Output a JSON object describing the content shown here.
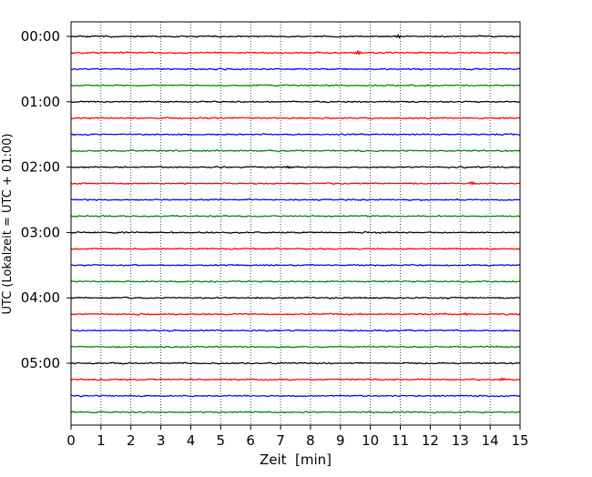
{
  "chart_data": {
    "type": "line",
    "chart_kind": "seismogram helicorder (dayplot)",
    "title": "",
    "xlabel": "Zeit  [min]",
    "ylabel": "UTC (Lokalzeit = UTC + 01:00)",
    "xlim": [
      0,
      15
    ],
    "x_ticks": [
      "0",
      "1",
      "2",
      "3",
      "4",
      "5",
      "6",
      "7",
      "8",
      "9",
      "10",
      "11",
      "12",
      "13",
      "14",
      "15"
    ],
    "y_tick_labels": [
      "00:00",
      "01:00",
      "02:00",
      "03:00",
      "04:00",
      "05:00"
    ],
    "rows_per_hour": 4,
    "row_minutes": 15,
    "row_count": 24,
    "row_colors": [
      "#000000",
      "#ff0000",
      "#0000ff",
      "#008000"
    ],
    "grid": {
      "vertical": true,
      "horizontal": false,
      "style": "dotted"
    },
    "legend": "none",
    "series": [
      {
        "start": "00:00",
        "color": "#000000",
        "noise_level": 1.0,
        "spikes": [
          {
            "x": 10.95,
            "amp": 1.8
          }
        ]
      },
      {
        "start": "00:15",
        "color": "#ff0000",
        "noise_level": 1.0,
        "spikes": [
          {
            "x": 9.6,
            "amp": 2.6
          }
        ]
      },
      {
        "start": "00:30",
        "color": "#0000ff",
        "noise_level": 1.0,
        "spikes": []
      },
      {
        "start": "00:45",
        "color": "#008000",
        "noise_level": 1.0,
        "spikes": []
      },
      {
        "start": "01:00",
        "color": "#000000",
        "noise_level": 1.0,
        "spikes": []
      },
      {
        "start": "01:15",
        "color": "#ff0000",
        "noise_level": 1.0,
        "spikes": []
      },
      {
        "start": "01:30",
        "color": "#0000ff",
        "noise_level": 1.0,
        "spikes": []
      },
      {
        "start": "01:45",
        "color": "#008000",
        "noise_level": 1.0,
        "spikes": []
      },
      {
        "start": "02:00",
        "color": "#000000",
        "noise_level": 1.0,
        "spikes": [
          {
            "x": 7.25,
            "amp": 1.6
          }
        ]
      },
      {
        "start": "02:15",
        "color": "#ff0000",
        "noise_level": 1.0,
        "spikes": [
          {
            "x": 13.4,
            "amp": 1.8
          }
        ]
      },
      {
        "start": "02:30",
        "color": "#0000ff",
        "noise_level": 1.0,
        "spikes": []
      },
      {
        "start": "02:45",
        "color": "#008000",
        "noise_level": 1.0,
        "spikes": []
      },
      {
        "start": "03:00",
        "color": "#000000",
        "noise_level": 1.0,
        "spikes": []
      },
      {
        "start": "03:15",
        "color": "#ff0000",
        "noise_level": 1.0,
        "spikes": []
      },
      {
        "start": "03:30",
        "color": "#0000ff",
        "noise_level": 1.0,
        "spikes": []
      },
      {
        "start": "03:45",
        "color": "#008000",
        "noise_level": 1.0,
        "spikes": []
      },
      {
        "start": "04:00",
        "color": "#000000",
        "noise_level": 1.0,
        "spikes": []
      },
      {
        "start": "04:15",
        "color": "#ff0000",
        "noise_level": 1.0,
        "spikes": [
          {
            "x": 13.2,
            "amp": 1.6
          }
        ]
      },
      {
        "start": "04:30",
        "color": "#0000ff",
        "noise_level": 1.0,
        "spikes": []
      },
      {
        "start": "04:45",
        "color": "#008000",
        "noise_level": 1.0,
        "spikes": []
      },
      {
        "start": "05:00",
        "color": "#000000",
        "noise_level": 1.0,
        "spikes": []
      },
      {
        "start": "05:15",
        "color": "#ff0000",
        "noise_level": 1.0,
        "spikes": [
          {
            "x": 14.4,
            "amp": 1.6
          }
        ]
      },
      {
        "start": "05:30",
        "color": "#0000ff",
        "noise_level": 1.0,
        "spikes": []
      },
      {
        "start": "05:45",
        "color": "#008000",
        "noise_level": 1.0,
        "spikes": []
      }
    ]
  }
}
